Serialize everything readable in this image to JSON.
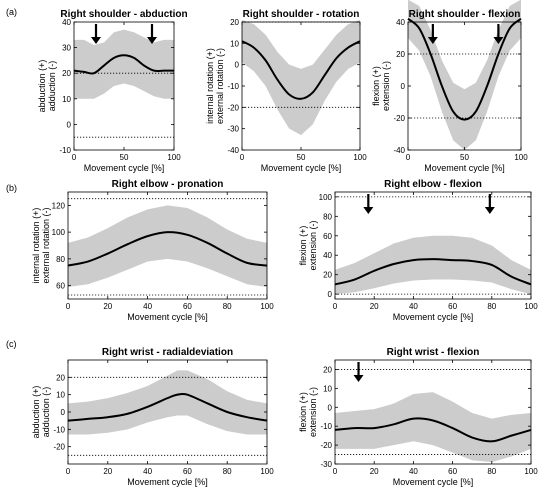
{
  "figure": {
    "panel_labels": [
      {
        "text": "(a)"
      },
      {
        "text": "(b)"
      },
      {
        "text": "(c)"
      }
    ]
  },
  "chart_data": [
    {
      "type": "line",
      "title": "Right shoulder - abduction",
      "xlabel": "Movement cycle [%]",
      "ylabel": [
        "abduction (+)",
        "adduction (-)"
      ],
      "xlim": [
        0,
        100
      ],
      "ylim": [
        -10,
        40
      ],
      "xticks": [
        0,
        50,
        100
      ],
      "yticks": [
        -10,
        0,
        10,
        20,
        30,
        40
      ],
      "hlines": [
        20,
        -5
      ],
      "arrows_at": [
        22,
        78
      ],
      "x": [
        0,
        10,
        20,
        30,
        40,
        50,
        60,
        70,
        80,
        90,
        100
      ],
      "mean": [
        21,
        20.5,
        20,
        23,
        26,
        27,
        26,
        23,
        21,
        21,
        21
      ],
      "upper": [
        33,
        33,
        31,
        32,
        36,
        37,
        36,
        34,
        32,
        33,
        33
      ],
      "lower": [
        10,
        10,
        10,
        12,
        15,
        16,
        15,
        13,
        11,
        10,
        10
      ]
    },
    {
      "type": "line",
      "title": "Right shoulder - rotation",
      "xlabel": "Movement cycle [%]",
      "ylabel": [
        "internal rotation (+)",
        "external rotation (-)"
      ],
      "xlim": [
        0,
        100
      ],
      "ylim": [
        -40,
        20
      ],
      "xticks": [
        0,
        50,
        100
      ],
      "yticks": [
        -40,
        -30,
        -20,
        -10,
        0,
        10,
        20
      ],
      "hlines": [
        20,
        -20
      ],
      "arrows_at": [],
      "x": [
        0,
        10,
        20,
        30,
        40,
        50,
        60,
        70,
        80,
        90,
        100
      ],
      "mean": [
        11,
        8,
        2,
        -7,
        -14,
        -16,
        -13,
        -5,
        3,
        8,
        11
      ],
      "upper": [
        21,
        19,
        14,
        6,
        0,
        -2,
        0,
        7,
        14,
        19,
        21
      ],
      "lower": [
        1,
        -3,
        -10,
        -21,
        -30,
        -33,
        -28,
        -17,
        -8,
        -2,
        1
      ]
    },
    {
      "type": "line",
      "title": "Right shoulder - flexion",
      "xlabel": "Movement cycle [%]",
      "ylabel": [
        "flexion (+)",
        "extension (-)"
      ],
      "xlim": [
        0,
        100
      ],
      "ylim": [
        -40,
        40
      ],
      "xticks": [
        0,
        50,
        100
      ],
      "yticks": [
        -40,
        -20,
        0,
        20,
        40
      ],
      "hlines": [
        20,
        -20
      ],
      "arrows_at": [
        22,
        80
      ],
      "x": [
        0,
        10,
        20,
        30,
        40,
        50,
        60,
        70,
        80,
        90,
        100
      ],
      "mean": [
        42,
        36,
        20,
        0,
        -16,
        -21,
        -16,
        0,
        20,
        36,
        42
      ],
      "upper": [
        54,
        50,
        35,
        16,
        2,
        -2,
        2,
        16,
        35,
        50,
        54
      ],
      "lower": [
        30,
        22,
        6,
        -16,
        -34,
        -40,
        -34,
        -16,
        6,
        22,
        30
      ]
    },
    {
      "type": "line",
      "title": "Right elbow - pronation",
      "xlabel": "Movement cycle [%]",
      "ylabel": [
        "internal rotation (+)",
        "external rotation (-)"
      ],
      "xlim": [
        0,
        100
      ],
      "ylim": [
        50,
        130
      ],
      "xticks": [
        0,
        20,
        40,
        60,
        80,
        100
      ],
      "yticks": [
        60,
        80,
        100,
        120
      ],
      "hlines": [
        125,
        53
      ],
      "arrows_at": [],
      "x": [
        0,
        10,
        20,
        30,
        40,
        50,
        60,
        70,
        80,
        90,
        100
      ],
      "mean": [
        75,
        78,
        84,
        91,
        97,
        100,
        98,
        92,
        84,
        77,
        75
      ],
      "upper": [
        92,
        96,
        103,
        111,
        117,
        120,
        118,
        111,
        102,
        95,
        92
      ],
      "lower": [
        59,
        61,
        66,
        72,
        78,
        80,
        78,
        73,
        67,
        61,
        59
      ]
    },
    {
      "type": "line",
      "title": "Right elbow - flexion",
      "xlabel": "Movement cycle [%]",
      "ylabel": [
        "flexion (+)",
        "extension (-)"
      ],
      "xlim": [
        0,
        100
      ],
      "ylim": [
        -5,
        105
      ],
      "xticks": [
        0,
        20,
        40,
        60,
        80,
        100
      ],
      "yticks": [
        0,
        20,
        40,
        60,
        80,
        100
      ],
      "hlines": [
        100,
        0
      ],
      "arrows_at": [
        17,
        79
      ],
      "x": [
        0,
        10,
        20,
        30,
        40,
        50,
        60,
        70,
        80,
        90,
        100
      ],
      "mean": [
        10,
        15,
        24,
        31,
        35,
        36,
        35,
        34,
        30,
        18,
        10
      ],
      "upper": [
        25,
        32,
        42,
        52,
        58,
        60,
        60,
        58,
        50,
        35,
        25
      ],
      "lower": [
        0,
        2,
        6,
        11,
        14,
        15,
        15,
        14,
        12,
        5,
        0
      ]
    },
    {
      "type": "line",
      "title": "Right wrist - radialdeviation",
      "xlabel": "Movement cycle [%]",
      "ylabel": [
        "abduction (+)",
        "adduction (-)"
      ],
      "xlim": [
        0,
        100
      ],
      "ylim": [
        -30,
        30
      ],
      "xticks": [
        0,
        20,
        40,
        60,
        80,
        100
      ],
      "yticks": [
        -20,
        -10,
        0,
        10,
        20
      ],
      "hlines": [
        20,
        -25
      ],
      "arrows_at": [],
      "x": [
        0,
        10,
        20,
        30,
        40,
        50,
        55,
        60,
        70,
        80,
        90,
        100
      ],
      "mean": [
        -5,
        -4,
        -3,
        -1,
        3,
        8,
        10,
        10,
        5,
        0,
        -3,
        -5
      ],
      "upper": [
        5,
        6,
        8,
        11,
        15,
        21,
        24,
        24,
        19,
        12,
        7,
        5
      ],
      "lower": [
        -13,
        -13,
        -12,
        -10,
        -6,
        -3,
        -2,
        -2,
        -7,
        -11,
        -13,
        -13
      ]
    },
    {
      "type": "line",
      "title": "Right wrist - flexion",
      "xlabel": "Movement cycle [%]",
      "ylabel": [
        "flexion (+)",
        "extension (-)"
      ],
      "xlim": [
        0,
        100
      ],
      "ylim": [
        -30,
        25
      ],
      "xticks": [
        0,
        20,
        40,
        60,
        80,
        100
      ],
      "yticks": [
        -30,
        -20,
        -10,
        0,
        10,
        20
      ],
      "hlines": [
        20,
        -25
      ],
      "arrows_at": [
        12
      ],
      "x": [
        0,
        10,
        20,
        30,
        40,
        50,
        60,
        70,
        80,
        90,
        100
      ],
      "mean": [
        -12,
        -11,
        -11,
        -9,
        -6,
        -7,
        -11,
        -16,
        -18,
        -15,
        -12
      ],
      "upper": [
        -3,
        -2,
        -1,
        2,
        7,
        8,
        3,
        -3,
        -6,
        -4,
        -3
      ],
      "lower": [
        -22,
        -22,
        -22,
        -20,
        -18,
        -20,
        -24,
        -28,
        -29,
        -26,
        -22
      ]
    }
  ]
}
